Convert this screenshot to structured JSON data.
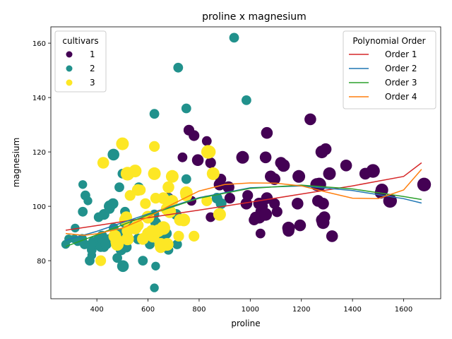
{
  "chart_data": {
    "type": "scatter",
    "title": "proline x magnesium",
    "xlabel": "proline",
    "ylabel": "magnesium",
    "xlim": [
      220,
      1745
    ],
    "ylim": [
      66,
      166
    ],
    "xticks": [
      400,
      600,
      800,
      1000,
      1200,
      1400,
      1600
    ],
    "yticks": [
      80,
      100,
      120,
      140,
      160
    ],
    "grid": false,
    "size_encoding_range": [
      8,
      22
    ],
    "hue_legend": {
      "title": "cultivars",
      "placement": "top-left",
      "entries": [
        {
          "label": "1",
          "color": "#440154"
        },
        {
          "label": "2",
          "color": "#21918c"
        },
        {
          "label": "3",
          "color": "#fde725"
        }
      ]
    },
    "line_legend": {
      "title": "Polynomial Order",
      "placement": "top-right",
      "entries": [
        {
          "label": "Order 1",
          "color": "#d62728"
        },
        {
          "label": "Order 2",
          "color": "#1f77b4"
        },
        {
          "label": "Order 3",
          "color": "#2ca02c"
        },
        {
          "label": "Order 4",
          "color": "#ff7f0e"
        }
      ]
    },
    "series": [
      {
        "cultivar": "1",
        "color": "#440154",
        "points": [
          {
            "x": 1065,
            "y": 127,
            "s": 0.62
          },
          {
            "x": 1050,
            "y": 100,
            "s": 0.42
          },
          {
            "x": 1185,
            "y": 101,
            "s": 0.62
          },
          {
            "x": 1480,
            "y": 113,
            "s": 0.82
          },
          {
            "x": 735,
            "y": 118,
            "s": 0.42
          },
          {
            "x": 1450,
            "y": 112,
            "s": 0.62
          },
          {
            "x": 1290,
            "y": 96,
            "s": 0.62
          },
          {
            "x": 1295,
            "y": 121,
            "s": 0.62
          },
          {
            "x": 1045,
            "y": 97,
            "s": 0.72
          },
          {
            "x": 1045,
            "y": 98,
            "s": 0.72
          },
          {
            "x": 1510,
            "y": 105,
            "s": 0.62
          },
          {
            "x": 1280,
            "y": 95,
            "s": 0.62
          },
          {
            "x": 1320,
            "y": 89,
            "s": 0.62
          },
          {
            "x": 1150,
            "y": 91,
            "s": 0.62
          },
          {
            "x": 1547,
            "y": 102,
            "s": 0.82
          },
          {
            "x": 1310,
            "y": 112,
            "s": 0.72
          },
          {
            "x": 1280,
            "y": 120,
            "s": 0.72
          },
          {
            "x": 1130,
            "y": 115,
            "s": 0.72
          },
          {
            "x": 1680,
            "y": 108,
            "s": 0.82
          },
          {
            "x": 845,
            "y": 116,
            "s": 0.52
          },
          {
            "x": 780,
            "y": 126,
            "s": 0.52
          },
          {
            "x": 770,
            "y": 102,
            "s": 0.42
          },
          {
            "x": 1035,
            "y": 101,
            "s": 0.62
          },
          {
            "x": 1015,
            "y": 95,
            "s": 0.52
          },
          {
            "x": 845,
            "y": 96,
            "s": 0.42
          },
          {
            "x": 830,
            "y": 124,
            "s": 0.42
          },
          {
            "x": 1195,
            "y": 93,
            "s": 0.62
          },
          {
            "x": 1285,
            "y": 94,
            "s": 0.72
          },
          {
            "x": 915,
            "y": 107,
            "s": 0.62
          },
          {
            "x": 1035,
            "y": 96,
            "s": 0.72
          },
          {
            "x": 1285,
            "y": 101,
            "s": 0.62
          },
          {
            "x": 1515,
            "y": 106,
            "s": 0.72
          },
          {
            "x": 990,
            "y": 104,
            "s": 0.52
          },
          {
            "x": 1235,
            "y": 132,
            "s": 0.62
          },
          {
            "x": 1095,
            "y": 110,
            "s": 0.62
          },
          {
            "x": 920,
            "y": 103,
            "s": 0.52
          },
          {
            "x": 880,
            "y": 108,
            "s": 0.62
          },
          {
            "x": 1105,
            "y": 98,
            "s": 0.52
          },
          {
            "x": 1020,
            "y": 96,
            "s": 0.52
          },
          {
            "x": 760,
            "y": 128,
            "s": 0.52
          },
          {
            "x": 795,
            "y": 117,
            "s": 0.62
          },
          {
            "x": 1035,
            "y": 101,
            "s": 0.62
          },
          {
            "x": 1095,
            "y": 101,
            "s": 0.52
          },
          {
            "x": 680,
            "y": 103,
            "s": 0.52
          },
          {
            "x": 885,
            "y": 110,
            "s": 0.52
          },
          {
            "x": 1080,
            "y": 111,
            "s": 0.62
          },
          {
            "x": 1065,
            "y": 103,
            "s": 0.62
          },
          {
            "x": 985,
            "y": 101,
            "s": 0.62
          },
          {
            "x": 1060,
            "y": 118,
            "s": 0.62
          },
          {
            "x": 1260,
            "y": 108,
            "s": 0.72
          },
          {
            "x": 1150,
            "y": 92,
            "s": 0.72
          },
          {
            "x": 1265,
            "y": 102,
            "s": 0.62
          },
          {
            "x": 1190,
            "y": 111,
            "s": 0.72
          },
          {
            "x": 1375,
            "y": 115,
            "s": 0.62
          },
          {
            "x": 1060,
            "y": 97,
            "s": 0.72
          },
          {
            "x": 1120,
            "y": 116,
            "s": 0.62
          },
          {
            "x": 970,
            "y": 118,
            "s": 0.72
          },
          {
            "x": 1270,
            "y": 108,
            "s": 0.82
          },
          {
            "x": 1040,
            "y": 90,
            "s": 0.42
          }
        ]
      },
      {
        "cultivar": "2",
        "color": "#21918c",
        "points": [
          {
            "x": 520,
            "y": 88,
            "s": 0.42
          },
          {
            "x": 680,
            "y": 101,
            "s": 0.52
          },
          {
            "x": 450,
            "y": 100,
            "s": 0.62
          },
          {
            "x": 630,
            "y": 94,
            "s": 0.52
          },
          {
            "x": 420,
            "y": 89,
            "s": 0.52
          },
          {
            "x": 355,
            "y": 104,
            "s": 0.42
          },
          {
            "x": 678,
            "y": 98,
            "s": 0.42
          },
          {
            "x": 502,
            "y": 78,
            "s": 0.62
          },
          {
            "x": 510,
            "y": 98,
            "s": 0.42
          },
          {
            "x": 750,
            "y": 110,
            "s": 0.42
          },
          {
            "x": 718,
            "y": 151,
            "s": 0.42
          },
          {
            "x": 870,
            "y": 103,
            "s": 0.52
          },
          {
            "x": 410,
            "y": 86,
            "s": 0.42
          },
          {
            "x": 472,
            "y": 87,
            "s": 0.42
          },
          {
            "x": 985,
            "y": 139,
            "s": 0.42
          },
          {
            "x": 886,
            "y": 101,
            "s": 0.52
          },
          {
            "x": 428,
            "y": 97,
            "s": 0.52
          },
          {
            "x": 392,
            "y": 86,
            "s": 0.42
          },
          {
            "x": 500,
            "y": 112,
            "s": 0.42
          },
          {
            "x": 750,
            "y": 136,
            "s": 0.42
          },
          {
            "x": 463,
            "y": 101,
            "s": 0.52
          },
          {
            "x": 278,
            "y": 86,
            "s": 0.32
          },
          {
            "x": 714,
            "y": 86,
            "s": 0.42
          },
          {
            "x": 630,
            "y": 78,
            "s": 0.32
          },
          {
            "x": 515,
            "y": 85,
            "s": 0.52
          },
          {
            "x": 520,
            "y": 94,
            "s": 0.42
          },
          {
            "x": 450,
            "y": 99,
            "s": 0.42
          },
          {
            "x": 495,
            "y": 90,
            "s": 0.52
          },
          {
            "x": 562,
            "y": 88,
            "s": 0.42
          },
          {
            "x": 680,
            "y": 84,
            "s": 0.42
          },
          {
            "x": 625,
            "y": 70,
            "s": 0.32
          },
          {
            "x": 480,
            "y": 81,
            "s": 0.42
          },
          {
            "x": 450,
            "y": 88,
            "s": 0.42
          },
          {
            "x": 495,
            "y": 84,
            "s": 0.52
          },
          {
            "x": 290,
            "y": 88,
            "s": 0.32
          },
          {
            "x": 345,
            "y": 108,
            "s": 0.32
          },
          {
            "x": 937,
            "y": 162,
            "s": 0.42
          },
          {
            "x": 625,
            "y": 134,
            "s": 0.42
          },
          {
            "x": 428,
            "y": 85,
            "s": 0.42
          },
          {
            "x": 660,
            "y": 88,
            "s": 0.52
          },
          {
            "x": 406,
            "y": 88,
            "s": 0.42
          },
          {
            "x": 710,
            "y": 97,
            "s": 0.52
          },
          {
            "x": 562,
            "y": 88,
            "s": 0.42
          },
          {
            "x": 438,
            "y": 86,
            "s": 0.42
          },
          {
            "x": 415,
            "y": 85,
            "s": 0.42
          },
          {
            "x": 672,
            "y": 90,
            "s": 0.52
          },
          {
            "x": 315,
            "y": 92,
            "s": 0.32
          },
          {
            "x": 510,
            "y": 94,
            "s": 0.52
          },
          {
            "x": 488,
            "y": 107,
            "s": 0.42
          },
          {
            "x": 312,
            "y": 88,
            "s": 0.32
          },
          {
            "x": 680,
            "y": 103,
            "s": 0.42
          },
          {
            "x": 562,
            "y": 88,
            "s": 0.52
          },
          {
            "x": 325,
            "y": 87,
            "s": 0.32
          },
          {
            "x": 607,
            "y": 86,
            "s": 0.42
          },
          {
            "x": 434,
            "y": 86,
            "s": 0.42
          },
          {
            "x": 385,
            "y": 87,
            "s": 0.42
          },
          {
            "x": 407,
            "y": 96,
            "s": 0.42
          },
          {
            "x": 495,
            "y": 85,
            "s": 0.42
          },
          {
            "x": 345,
            "y": 98,
            "s": 0.42
          },
          {
            "x": 372,
            "y": 80,
            "s": 0.42
          },
          {
            "x": 564,
            "y": 107,
            "s": 0.42
          },
          {
            "x": 625,
            "y": 97,
            "s": 0.42
          },
          {
            "x": 465,
            "y": 119,
            "s": 0.62
          },
          {
            "x": 365,
            "y": 102,
            "s": 0.32
          },
          {
            "x": 380,
            "y": 84,
            "s": 0.42
          },
          {
            "x": 380,
            "y": 82,
            "s": 0.32
          },
          {
            "x": 378,
            "y": 86,
            "s": 0.42
          },
          {
            "x": 352,
            "y": 86,
            "s": 0.42
          },
          {
            "x": 466,
            "y": 92,
            "s": 0.42
          },
          {
            "x": 342,
            "y": 88,
            "s": 0.42
          },
          {
            "x": 580,
            "y": 80,
            "s": 0.42
          }
        ]
      },
      {
        "cultivar": "3",
        "color": "#fde725",
        "points": [
          {
            "x": 630,
            "y": 103,
            "s": 0.52
          },
          {
            "x": 530,
            "y": 104,
            "s": 0.52
          },
          {
            "x": 560,
            "y": 106,
            "s": 0.62
          },
          {
            "x": 600,
            "y": 90,
            "s": 0.62
          },
          {
            "x": 650,
            "y": 86,
            "s": 0.72
          },
          {
            "x": 695,
            "y": 111,
            "s": 0.72
          },
          {
            "x": 720,
            "y": 89,
            "s": 0.52
          },
          {
            "x": 515,
            "y": 96,
            "s": 0.62
          },
          {
            "x": 580,
            "y": 88,
            "s": 0.62
          },
          {
            "x": 590,
            "y": 101,
            "s": 0.52
          },
          {
            "x": 600,
            "y": 96,
            "s": 0.72
          },
          {
            "x": 780,
            "y": 89,
            "s": 0.52
          },
          {
            "x": 520,
            "y": 112,
            "s": 0.82
          },
          {
            "x": 550,
            "y": 113,
            "s": 0.72
          },
          {
            "x": 855,
            "y": 112,
            "s": 0.72
          },
          {
            "x": 830,
            "y": 102,
            "s": 0.52
          },
          {
            "x": 415,
            "y": 80,
            "s": 0.52
          },
          {
            "x": 625,
            "y": 122,
            "s": 0.52
          },
          {
            "x": 650,
            "y": 85,
            "s": 0.62
          },
          {
            "x": 550,
            "y": 92,
            "s": 0.72
          },
          {
            "x": 500,
            "y": 123,
            "s": 0.72
          },
          {
            "x": 480,
            "y": 86,
            "s": 0.72
          },
          {
            "x": 425,
            "y": 116,
            "s": 0.62
          },
          {
            "x": 675,
            "y": 99,
            "s": 0.72
          },
          {
            "x": 640,
            "y": 91,
            "s": 0.72
          },
          {
            "x": 725,
            "y": 95,
            "s": 0.62
          },
          {
            "x": 480,
            "y": 87,
            "s": 0.82
          },
          {
            "x": 880,
            "y": 97,
            "s": 0.72
          },
          {
            "x": 660,
            "y": 103,
            "s": 0.62
          },
          {
            "x": 620,
            "y": 89,
            "s": 0.72
          },
          {
            "x": 520,
            "y": 88,
            "s": 0.72
          },
          {
            "x": 680,
            "y": 107,
            "s": 0.62
          },
          {
            "x": 570,
            "y": 106,
            "s": 0.52
          },
          {
            "x": 675,
            "y": 86,
            "s": 0.72
          },
          {
            "x": 615,
            "y": 91,
            "s": 0.62
          },
          {
            "x": 520,
            "y": 91,
            "s": 0.62
          },
          {
            "x": 695,
            "y": 102,
            "s": 0.62
          },
          {
            "x": 685,
            "y": 98,
            "s": 0.72
          },
          {
            "x": 750,
            "y": 105,
            "s": 0.72
          },
          {
            "x": 510,
            "y": 95,
            "s": 0.62
          },
          {
            "x": 470,
            "y": 89,
            "s": 0.72
          },
          {
            "x": 660,
            "y": 92,
            "s": 0.82
          },
          {
            "x": 740,
            "y": 95,
            "s": 0.72
          },
          {
            "x": 750,
            "y": 104,
            "s": 0.62
          },
          {
            "x": 835,
            "y": 120,
            "s": 0.82
          },
          {
            "x": 840,
            "y": 120,
            "s": 0.72
          },
          {
            "x": 560,
            "y": 93,
            "s": 0.62
          },
          {
            "x": 625,
            "y": 112,
            "s": 0.72
          }
        ]
      }
    ],
    "lines": [
      {
        "name": "Order 1",
        "color": "#d62728",
        "x": [
          278,
          400,
          600,
          800,
          1000,
          1200,
          1400,
          1600,
          1670
        ],
        "y": [
          91.2,
          92.9,
          95.8,
          98.6,
          101.5,
          104.5,
          107.5,
          111.0,
          116.0
        ]
      },
      {
        "name": "Order 2",
        "color": "#1f77b4",
        "x": [
          278,
          400,
          600,
          800,
          1000,
          1200,
          1400,
          1600,
          1670
        ],
        "y": [
          87.5,
          90.8,
          97.2,
          103.2,
          106.8,
          107.5,
          105.8,
          102.8,
          101.2
        ]
      },
      {
        "name": "Order 3",
        "color": "#2ca02c",
        "x": [
          278,
          400,
          600,
          800,
          1000,
          1200,
          1400,
          1600,
          1670
        ],
        "y": [
          85.2,
          89.5,
          96.8,
          103.0,
          106.6,
          107.8,
          106.4,
          103.6,
          102.5
        ]
      },
      {
        "name": "Order 4",
        "color": "#ff7f0e",
        "x": [
          278,
          350,
          400,
          500,
          600,
          700,
          800,
          900,
          1000,
          1100,
          1200,
          1300,
          1400,
          1500,
          1600,
          1670
        ],
        "y": [
          90.0,
          89.3,
          89.9,
          92.0,
          96.0,
          101.0,
          105.6,
          108.0,
          108.6,
          108.5,
          107.5,
          105.2,
          103.0,
          102.8,
          106.0,
          113.6
        ]
      }
    ]
  }
}
